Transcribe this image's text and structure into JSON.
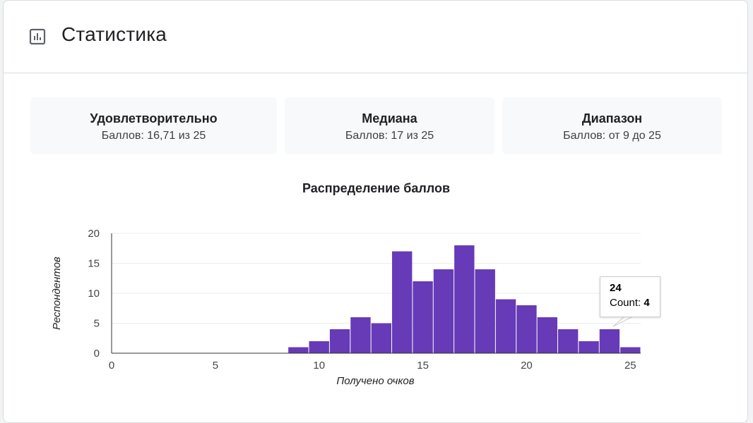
{
  "header": {
    "title": "Статистика",
    "icon": "bar-chart-icon"
  },
  "stats": [
    {
      "title": "Удовлетворительно",
      "sub": "Баллов: 16,71 из 25"
    },
    {
      "title": "Медиана",
      "sub": "Баллов: 17 из 25"
    },
    {
      "title": "Диапазон",
      "sub": "Баллов: от 9 до 25"
    }
  ],
  "tooltip": {
    "label": "24",
    "count_label": "Count:",
    "count_value": "4"
  },
  "chart_data": {
    "type": "bar",
    "title": "Распределение баллов",
    "xlabel": "Получено очков",
    "ylabel": "Респондентов",
    "xlim": [
      0,
      25.5
    ],
    "ylim": [
      0,
      20
    ],
    "xticks": [
      0,
      5,
      10,
      15,
      20,
      25
    ],
    "yticks": [
      0,
      5,
      10,
      15,
      20
    ],
    "bin_width": 1,
    "bins": [
      {
        "x": 9,
        "value": 1
      },
      {
        "x": 10,
        "value": 2
      },
      {
        "x": 11,
        "value": 4
      },
      {
        "x": 12,
        "value": 6
      },
      {
        "x": 13,
        "value": 5
      },
      {
        "x": 14,
        "value": 17
      },
      {
        "x": 15,
        "value": 12
      },
      {
        "x": 16,
        "value": 14
      },
      {
        "x": 17,
        "value": 18
      },
      {
        "x": 18,
        "value": 14
      },
      {
        "x": 19,
        "value": 9
      },
      {
        "x": 20,
        "value": 8
      },
      {
        "x": 21,
        "value": 6
      },
      {
        "x": 22,
        "value": 4
      },
      {
        "x": 23,
        "value": 2
      },
      {
        "x": 24,
        "value": 4
      },
      {
        "x": 25,
        "value": 1
      }
    ],
    "bar_color": "#673ab7",
    "grid": true
  }
}
